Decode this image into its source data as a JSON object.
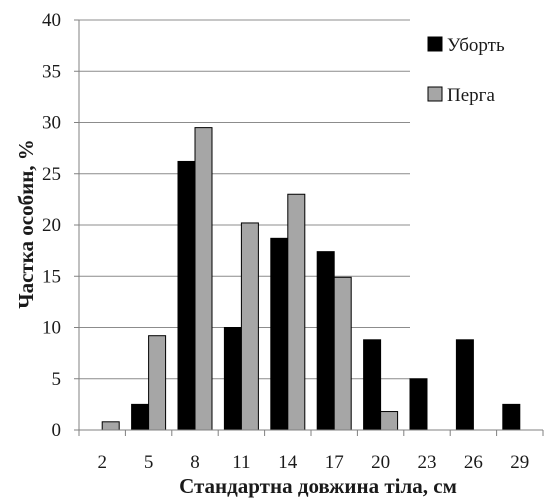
{
  "chart_data": {
    "type": "bar",
    "title": "",
    "xlabel": "Стандартна довжина тіла, см",
    "ylabel": "Частка особин, %",
    "categories": [
      "2",
      "5",
      "8",
      "11",
      "14",
      "17",
      "20",
      "23",
      "26",
      "29"
    ],
    "series": [
      {
        "name": "Уборть",
        "color": "#000000",
        "values": [
          0,
          2.5,
          26.2,
          10,
          18.7,
          17.4,
          8.8,
          5.0,
          8.8,
          2.5
        ]
      },
      {
        "name": "Перга",
        "color": "#a6a6a6",
        "values": [
          0.8,
          9.2,
          29.5,
          20.2,
          23.0,
          14.9,
          1.8,
          0,
          0,
          0
        ]
      }
    ],
    "ylim": [
      0,
      40
    ],
    "yticks": [
      0,
      5,
      10,
      15,
      20,
      25,
      30,
      35,
      40
    ],
    "grid": true,
    "legend": "top-right"
  }
}
